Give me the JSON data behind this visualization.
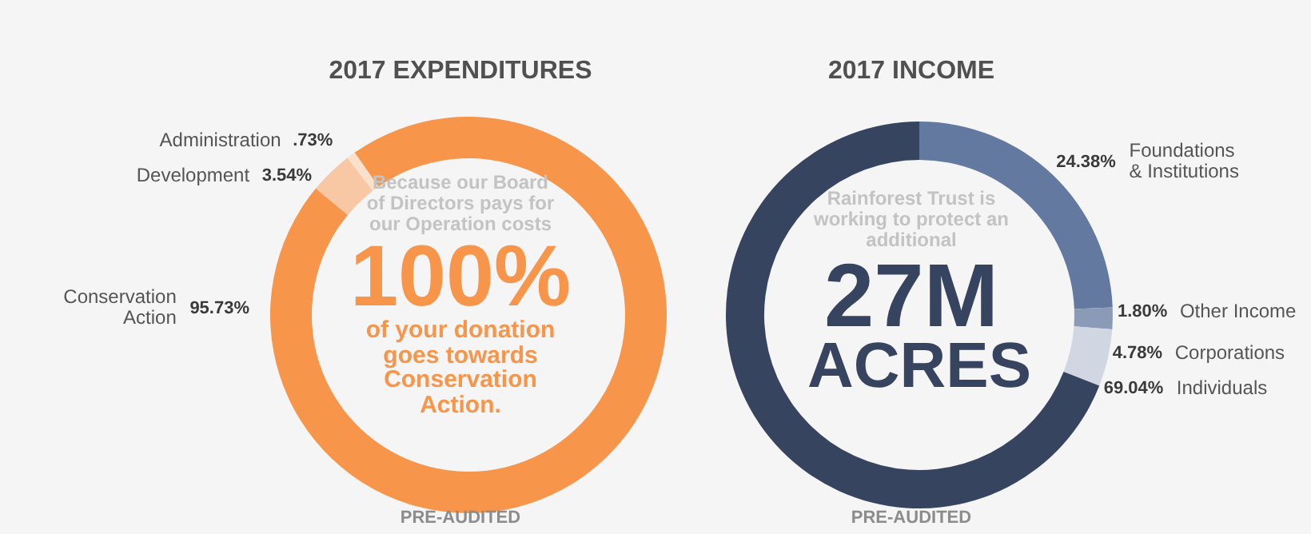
{
  "chart_data": [
    {
      "type": "donut",
      "title": "2017 EXPENDITURES",
      "categories": [
        "Administration",
        "Development",
        "Conservation Action"
      ],
      "values": [
        0.73,
        3.54,
        95.73
      ],
      "colors": [
        "#fbe1cc",
        "#f8c8a4",
        "#f7954a"
      ],
      "value_labels": [
        ".73%",
        "3.54%",
        "95.73%"
      ],
      "annotations": [
        "Because our Board of Directors pays for our Operation costs",
        "100%",
        "of your donation goes towards Conservation Action.",
        "PRE-AUDITED"
      ]
    },
    {
      "type": "donut",
      "title": "2017 INCOME",
      "categories": [
        "Foundations & Institutions",
        "Other Income",
        "Corporations",
        "Individuals"
      ],
      "values": [
        24.38,
        1.8,
        4.78,
        69.04
      ],
      "colors": [
        "#63799f",
        "#8b9bb7",
        "#d0d7e2",
        "#37445f"
      ],
      "value_labels": [
        "24.38%",
        "1.80%",
        "4.78%",
        "69.04%"
      ],
      "annotations": [
        "Rainforest Trust is working to protect an additional",
        "27M",
        "ACRES",
        "PRE-AUDITED"
      ]
    }
  ]
}
